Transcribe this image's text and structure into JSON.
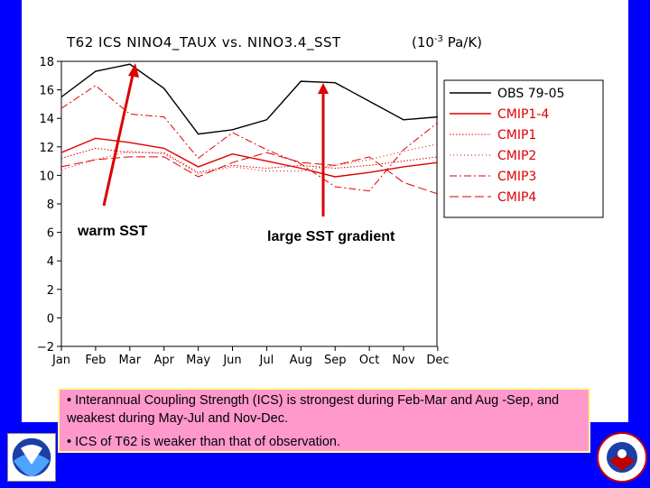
{
  "colors": {
    "background": "#0000ff",
    "panel": "#ffffff",
    "note_fill": "#ff99cc",
    "note_border": "#ffff99",
    "obs": "#000000",
    "cmip": "#dd0000",
    "arrow": "#dd0000"
  },
  "annotations": {
    "warm_sst": "warm SST",
    "large_gradient": "large SST gradient"
  },
  "notes": [
    "• Interannual Coupling Strength (ICS) is strongest during Feb-Mar and Aug -Sep, and weakest during May-Jul and Nov-Dec.",
    "• ICS of T62 is weaker than that of observation."
  ],
  "logos": {
    "left": "NOAA",
    "right": "NATIONAL WEATHER SERVICE"
  },
  "chart_data": {
    "type": "line",
    "title": "T62 ICS NINO4_TAUX vs. NINO3.4_SST    (10⁻³ Pa/K)",
    "title_main": "T62 ICS NINO4_TAUX vs. NINO3.4_SST",
    "title_units": "(10",
    "title_exp": "-3",
    "title_units_tail": " Pa/K)",
    "xlabel": "",
    "ylabel": "",
    "categories": [
      "Jan",
      "Feb",
      "Mar",
      "Apr",
      "May",
      "Jun",
      "Jul",
      "Aug",
      "Sep",
      "Oct",
      "Nov",
      "Dec"
    ],
    "yticks": [
      -2,
      0,
      2,
      4,
      6,
      8,
      10,
      12,
      14,
      16,
      18
    ],
    "ylim": [
      -2,
      18
    ],
    "grid": false,
    "legend_position": "top-right",
    "series": [
      {
        "name": "OBS 79-05",
        "style": "solid",
        "color": "#000000",
        "width": 1.4,
        "values": [
          15.5,
          17.3,
          17.8,
          16.1,
          12.9,
          13.2,
          13.9,
          16.6,
          16.5,
          15.2,
          13.9,
          14.1
        ]
      },
      {
        "name": "CMIP1-4",
        "style": "solid",
        "color": "#dd0000",
        "width": 1.4,
        "values": [
          11.6,
          12.6,
          12.3,
          11.9,
          10.6,
          11.5,
          11.0,
          10.5,
          9.9,
          10.2,
          10.6,
          10.9
        ]
      },
      {
        "name": "CMIP1",
        "style": "dotted",
        "color": "#dd0000",
        "width": 1,
        "values": [
          11.2,
          11.9,
          11.6,
          11.6,
          10.2,
          10.7,
          10.5,
          10.7,
          10.5,
          10.7,
          11.0,
          11.3
        ]
      },
      {
        "name": "CMIP2",
        "style": "dotted2",
        "color": "#dd0000",
        "width": 1,
        "values": [
          10.4,
          11.1,
          11.7,
          11.5,
          10.1,
          10.6,
          10.3,
          10.3,
          10.7,
          11.1,
          11.7,
          12.2
        ]
      },
      {
        "name": "CMIP3",
        "style": "dashdot",
        "color": "#dd0000",
        "width": 1,
        "values": [
          14.7,
          16.3,
          14.3,
          14.1,
          11.2,
          13.0,
          11.8,
          10.8,
          9.2,
          8.9,
          11.8,
          13.7
        ]
      },
      {
        "name": "CMIP4",
        "style": "longdash",
        "color": "#dd0000",
        "width": 1,
        "values": [
          10.6,
          11.1,
          11.3,
          11.3,
          9.9,
          10.9,
          11.6,
          10.9,
          10.7,
          11.3,
          9.5,
          8.7
        ]
      }
    ]
  }
}
